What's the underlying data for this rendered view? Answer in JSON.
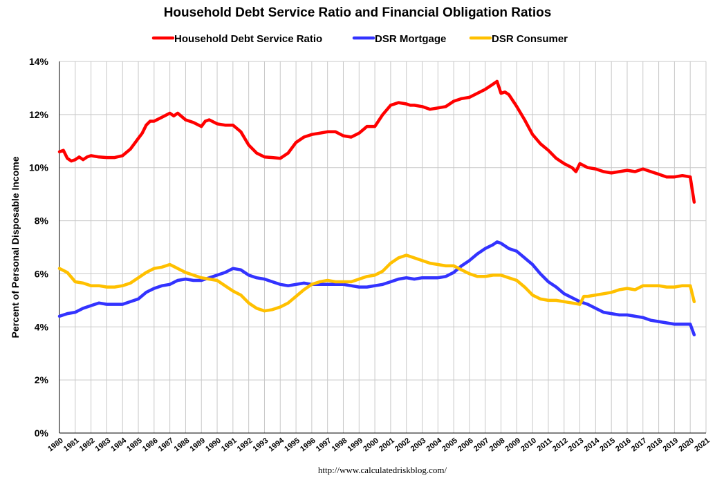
{
  "chart_data": {
    "type": "line",
    "title": "Household Debt Service Ratio and Financial Obligation Ratios",
    "ylabel": "Percent of Personal Disposable Income",
    "xlabel": "",
    "source": "http://www.calculatedriskblog.com/",
    "ylim": [
      0,
      14
    ],
    "yticks": [
      0,
      2,
      4,
      6,
      8,
      10,
      12,
      14
    ],
    "ytick_labels": [
      "0%",
      "2%",
      "4%",
      "6%",
      "8%",
      "10%",
      "12%",
      "14%"
    ],
    "xlim": [
      1980,
      2021
    ],
    "xtick_labels": [
      "1980",
      "1981",
      "1982",
      "1983",
      "1984",
      "1985",
      "1986",
      "1987",
      "1988",
      "1989",
      "1990",
      "1991",
      "1992",
      "1993",
      "1994",
      "1995",
      "1996",
      "1997",
      "1998",
      "1999",
      "2000",
      "2001",
      "2002",
      "2003",
      "2004",
      "2005",
      "2006",
      "2007",
      "2008",
      "2009",
      "2010",
      "2011",
      "2012",
      "2013",
      "2014",
      "2015",
      "2016",
      "2017",
      "2018",
      "2019",
      "2020",
      "2021"
    ],
    "grid": true,
    "legend_position": "top",
    "series": [
      {
        "name": "Household Debt Service Ratio",
        "color": "#ff0000",
        "x": [
          1980.0,
          1980.25,
          1980.5,
          1980.75,
          1981.0,
          1981.25,
          1981.5,
          1981.75,
          1982.0,
          1982.5,
          1983.0,
          1983.5,
          1984.0,
          1984.5,
          1985.0,
          1985.25,
          1985.5,
          1985.75,
          1986.0,
          1986.5,
          1987.0,
          1987.25,
          1987.5,
          1988.0,
          1988.5,
          1989.0,
          1989.25,
          1989.5,
          1990.0,
          1990.5,
          1991.0,
          1991.5,
          1992.0,
          1992.5,
          1993.0,
          1993.5,
          1994.0,
          1994.5,
          1995.0,
          1995.5,
          1996.0,
          1996.5,
          1997.0,
          1997.5,
          1998.0,
          1998.5,
          1999.0,
          1999.5,
          2000.0,
          2000.5,
          2001.0,
          2001.5,
          2002.0,
          2002.25,
          2002.5,
          2003.0,
          2003.5,
          2004.0,
          2004.5,
          2005.0,
          2005.5,
          2006.0,
          2006.5,
          2007.0,
          2007.5,
          2007.75,
          2008.0,
          2008.25,
          2008.5,
          2009.0,
          2009.5,
          2010.0,
          2010.5,
          2011.0,
          2011.5,
          2012.0,
          2012.5,
          2012.75,
          2013.0,
          2013.5,
          2014.0,
          2014.5,
          2015.0,
          2015.5,
          2016.0,
          2016.5,
          2017.0,
          2017.5,
          2018.0,
          2018.5,
          2019.0,
          2019.5,
          2020.0,
          2020.25
        ],
        "values": [
          10.6,
          10.65,
          10.35,
          10.25,
          10.3,
          10.4,
          10.3,
          10.4,
          10.45,
          10.4,
          10.38,
          10.38,
          10.45,
          10.7,
          11.1,
          11.3,
          11.6,
          11.75,
          11.75,
          11.9,
          12.05,
          11.95,
          12.05,
          11.8,
          11.7,
          11.55,
          11.75,
          11.8,
          11.65,
          11.6,
          11.6,
          11.35,
          10.85,
          10.55,
          10.4,
          10.38,
          10.35,
          10.55,
          10.95,
          11.15,
          11.25,
          11.3,
          11.35,
          11.35,
          11.2,
          11.15,
          11.3,
          11.55,
          11.55,
          12.0,
          12.35,
          12.45,
          12.4,
          12.35,
          12.35,
          12.3,
          12.2,
          12.25,
          12.3,
          12.5,
          12.6,
          12.65,
          12.8,
          12.95,
          13.15,
          13.25,
          12.8,
          12.85,
          12.75,
          12.3,
          11.8,
          11.25,
          10.9,
          10.65,
          10.35,
          10.15,
          10.0,
          9.85,
          10.15,
          10.0,
          9.95,
          9.85,
          9.8,
          9.85,
          9.9,
          9.85,
          9.95,
          9.85,
          9.75,
          9.65,
          9.65,
          9.7,
          9.65,
          8.7
        ]
      },
      {
        "name": "DSR Mortgage",
        "color": "#3333ff",
        "x": [
          1980.0,
          1980.5,
          1981.0,
          1981.5,
          1982.0,
          1982.5,
          1983.0,
          1983.5,
          1984.0,
          1984.5,
          1985.0,
          1985.5,
          1986.0,
          1986.5,
          1987.0,
          1987.5,
          1988.0,
          1988.5,
          1989.0,
          1989.5,
          1990.0,
          1990.5,
          1991.0,
          1991.5,
          1992.0,
          1992.5,
          1993.0,
          1993.5,
          1994.0,
          1994.5,
          1995.0,
          1995.5,
          1996.0,
          1996.5,
          1997.0,
          1997.5,
          1998.0,
          1998.5,
          1999.0,
          1999.5,
          2000.0,
          2000.5,
          2001.0,
          2001.5,
          2002.0,
          2002.5,
          2003.0,
          2003.5,
          2004.0,
          2004.5,
          2005.0,
          2005.5,
          2006.0,
          2006.5,
          2007.0,
          2007.5,
          2007.75,
          2008.0,
          2008.5,
          2009.0,
          2009.5,
          2010.0,
          2010.5,
          2011.0,
          2011.5,
          2012.0,
          2012.5,
          2013.0,
          2013.5,
          2014.0,
          2014.5,
          2015.0,
          2015.5,
          2016.0,
          2016.5,
          2017.0,
          2017.5,
          2018.0,
          2018.5,
          2019.0,
          2019.5,
          2020.0,
          2020.25
        ],
        "values": [
          4.4,
          4.5,
          4.55,
          4.7,
          4.8,
          4.9,
          4.85,
          4.85,
          4.85,
          4.95,
          5.05,
          5.3,
          5.45,
          5.55,
          5.6,
          5.75,
          5.8,
          5.75,
          5.75,
          5.85,
          5.95,
          6.05,
          6.2,
          6.15,
          5.95,
          5.85,
          5.8,
          5.7,
          5.6,
          5.55,
          5.6,
          5.65,
          5.6,
          5.6,
          5.6,
          5.6,
          5.6,
          5.55,
          5.5,
          5.5,
          5.55,
          5.6,
          5.7,
          5.8,
          5.85,
          5.8,
          5.85,
          5.85,
          5.85,
          5.9,
          6.05,
          6.3,
          6.5,
          6.75,
          6.95,
          7.1,
          7.2,
          7.15,
          6.95,
          6.85,
          6.6,
          6.35,
          6.0,
          5.7,
          5.5,
          5.25,
          5.1,
          4.95,
          4.85,
          4.7,
          4.55,
          4.5,
          4.45,
          4.45,
          4.4,
          4.35,
          4.25,
          4.2,
          4.15,
          4.1,
          4.1,
          4.1,
          3.7
        ]
      },
      {
        "name": "DSR Consumer",
        "color": "#ffc000",
        "x": [
          1980.0,
          1980.5,
          1981.0,
          1981.5,
          1982.0,
          1982.5,
          1983.0,
          1983.5,
          1984.0,
          1984.5,
          1985.0,
          1985.5,
          1986.0,
          1986.5,
          1987.0,
          1987.5,
          1988.0,
          1988.5,
          1989.0,
          1989.5,
          1990.0,
          1990.5,
          1991.0,
          1991.5,
          1992.0,
          1992.5,
          1993.0,
          1993.5,
          1994.0,
          1994.5,
          1995.0,
          1995.5,
          1996.0,
          1996.5,
          1997.0,
          1997.5,
          1998.0,
          1998.5,
          1999.0,
          1999.5,
          2000.0,
          2000.5,
          2001.0,
          2001.5,
          2002.0,
          2002.5,
          2003.0,
          2003.5,
          2004.0,
          2004.5,
          2005.0,
          2005.5,
          2006.0,
          2006.5,
          2007.0,
          2007.5,
          2008.0,
          2008.5,
          2009.0,
          2009.5,
          2010.0,
          2010.5,
          2011.0,
          2011.5,
          2012.0,
          2012.5,
          2013.0,
          2013.25,
          2013.5,
          2014.0,
          2014.5,
          2015.0,
          2015.5,
          2016.0,
          2016.5,
          2017.0,
          2017.5,
          2018.0,
          2018.5,
          2019.0,
          2019.5,
          2020.0,
          2020.25
        ],
        "values": [
          6.2,
          6.05,
          5.7,
          5.65,
          5.55,
          5.55,
          5.5,
          5.5,
          5.55,
          5.65,
          5.85,
          6.05,
          6.2,
          6.25,
          6.35,
          6.2,
          6.05,
          5.95,
          5.85,
          5.8,
          5.75,
          5.55,
          5.35,
          5.2,
          4.9,
          4.7,
          4.6,
          4.65,
          4.75,
          4.9,
          5.15,
          5.4,
          5.6,
          5.7,
          5.75,
          5.7,
          5.7,
          5.7,
          5.8,
          5.9,
          5.95,
          6.1,
          6.4,
          6.6,
          6.7,
          6.6,
          6.5,
          6.4,
          6.35,
          6.3,
          6.3,
          6.15,
          6.0,
          5.9,
          5.9,
          5.95,
          5.95,
          5.85,
          5.75,
          5.5,
          5.2,
          5.05,
          5.0,
          5.0,
          4.95,
          4.9,
          4.85,
          5.15,
          5.15,
          5.2,
          5.25,
          5.3,
          5.4,
          5.45,
          5.4,
          5.55,
          5.55,
          5.55,
          5.5,
          5.5,
          5.55,
          5.55,
          4.95
        ]
      }
    ]
  }
}
